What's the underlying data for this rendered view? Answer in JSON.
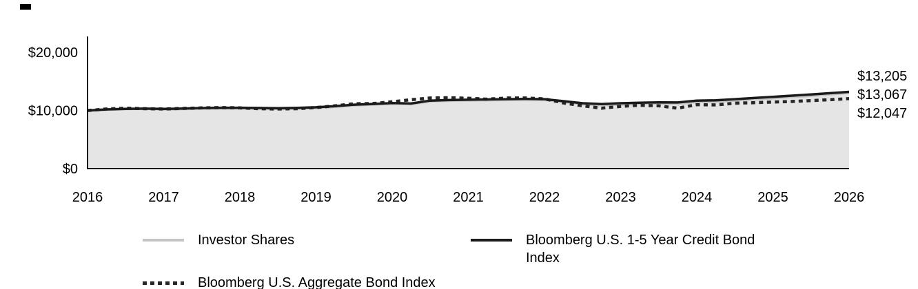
{
  "chart_data": {
    "type": "line",
    "x": [
      2016,
      2016.25,
      2016.5,
      2016.75,
      2017,
      2017.25,
      2017.5,
      2017.75,
      2018,
      2018.25,
      2018.5,
      2018.75,
      2019,
      2019.25,
      2019.5,
      2019.75,
      2020,
      2020.25,
      2020.5,
      2020.75,
      2021,
      2021.25,
      2021.5,
      2021.75,
      2022,
      2022.25,
      2022.5,
      2022.75,
      2023,
      2023.25,
      2023.5,
      2023.75,
      2024,
      2024.25,
      2024.5,
      2024.75,
      2025,
      2025.25,
      2025.5,
      2025.75,
      2026
    ],
    "xticks": [
      2016,
      2017,
      2018,
      2019,
      2020,
      2021,
      2022,
      2023,
      2024,
      2025,
      2026
    ],
    "xtick_labels": [
      "2016",
      "2017",
      "2018",
      "2019",
      "2020",
      "2021",
      "2022",
      "2023",
      "2024",
      "2025",
      "2026"
    ],
    "ylim": [
      0,
      22500
    ],
    "yticks": [
      0,
      10000,
      20000
    ],
    "ytick_labels": [
      "$0",
      "$10,000",
      "$20,000"
    ],
    "grid": false,
    "legend_position": "bottom",
    "axis_color": "#000000",
    "area_fill_color": "#e5e5e5",
    "series": [
      {
        "name": "Investor Shares",
        "color": "#c4c4c4",
        "line_style": "solid",
        "fill": true,
        "end_label": "$13,067",
        "values": [
          10000,
          10150,
          10250,
          10300,
          10200,
          10250,
          10350,
          10400,
          10400,
          10350,
          10300,
          10350,
          10450,
          10650,
          10900,
          11050,
          11200,
          11100,
          11600,
          11700,
          11750,
          11800,
          11850,
          11900,
          11850,
          11500,
          11100,
          10950,
          11050,
          11150,
          11200,
          11150,
          11500,
          11550,
          11750,
          11950,
          12150,
          12350,
          12550,
          12800,
          13067
        ]
      },
      {
        "name": "Bloomberg U.S. 1-5 Year Credit Bond Index",
        "color": "#1a1a1a",
        "line_style": "solid",
        "fill": false,
        "end_label": "$13,205",
        "values": [
          10000,
          10180,
          10280,
          10320,
          10280,
          10330,
          10420,
          10470,
          10470,
          10430,
          10400,
          10450,
          10550,
          10750,
          11000,
          11120,
          11280,
          11200,
          11700,
          11800,
          11850,
          11900,
          11950,
          12000,
          11950,
          11600,
          11250,
          11100,
          11250,
          11350,
          11400,
          11380,
          11700,
          11750,
          11950,
          12150,
          12350,
          12550,
          12750,
          12980,
          13205
        ]
      },
      {
        "name": "Bloomberg U.S. Aggregate Bond Index",
        "color": "#262626",
        "line_style": "dotted",
        "fill": false,
        "end_label": "$12,047",
        "values": [
          10000,
          10250,
          10400,
          10300,
          10250,
          10350,
          10450,
          10500,
          10450,
          10300,
          10250,
          10300,
          10500,
          10800,
          11150,
          11200,
          11500,
          11850,
          12150,
          12200,
          12100,
          11950,
          12150,
          12150,
          12000,
          11300,
          10800,
          10400,
          10700,
          10900,
          10800,
          10400,
          11000,
          10950,
          11250,
          11350,
          11450,
          11550,
          11700,
          11850,
          12047
        ]
      }
    ]
  }
}
